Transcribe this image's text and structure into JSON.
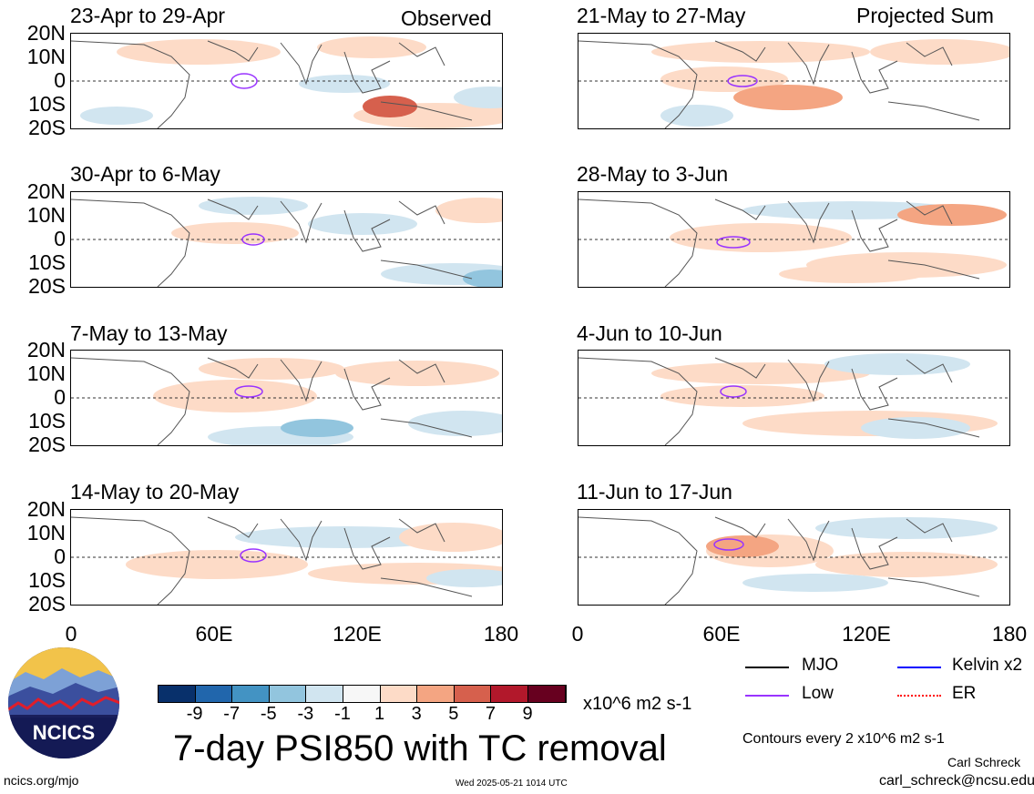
{
  "observed_label": "Observed",
  "projected_label": "Projected Sum",
  "left_panels": [
    {
      "title": "23-Apr to 29-Apr"
    },
    {
      "title": "30-Apr to 6-May"
    },
    {
      "title": "7-May to 13-May"
    },
    {
      "title": "14-May to 20-May"
    }
  ],
  "right_panels": [
    {
      "title": "21-May to 27-May"
    },
    {
      "title": "28-May to 3-Jun"
    },
    {
      "title": "4-Jun to 10-Jun"
    },
    {
      "title": "11-Jun to 17-Jun"
    }
  ],
  "lat_labels": [
    "20N",
    "10N",
    "0",
    "10S",
    "20S"
  ],
  "lon_labels": [
    "0",
    "60E",
    "120E",
    "180"
  ],
  "colorbar": {
    "ticks": [
      "-9",
      "-7",
      "-5",
      "-3",
      "-1",
      "1",
      "3",
      "5",
      "7",
      "9"
    ],
    "colors": [
      "#08306b",
      "#2166ac",
      "#4393c3",
      "#92c5de",
      "#d1e5f0",
      "#f7f7f7",
      "#fddbc7",
      "#f4a582",
      "#d6604d",
      "#b2182b",
      "#67001f"
    ],
    "units": "x10^6 m2 s-1"
  },
  "main_title": "7-day PSI850 with TC removal",
  "legend": {
    "mjo": "MJO",
    "kelvin": "Kelvin x2",
    "low": "Low",
    "er": "ER",
    "mjo_color": "#000000",
    "kelvin_color": "#0000ff",
    "low_color": "#9933ff",
    "er_color": "#ff0000"
  },
  "contour_note": "Contours every 2 x10^6 m2 s-1",
  "author": "Carl Schreck",
  "email": "carl_schreck@ncsu.edu",
  "site": "ncics.org/mjo",
  "timestamp": "Wed 2025-05-21 1014 UTC",
  "logo_text": "NCICS"
}
